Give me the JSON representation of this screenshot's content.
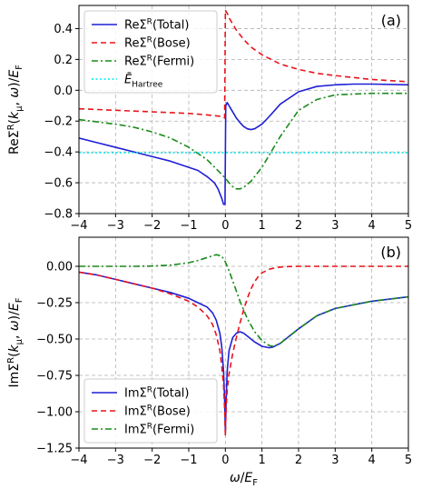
{
  "chart_data": [
    {
      "panel_label": "(a)",
      "type": "line",
      "ylabel": "ReΣR(kμ, ω)/EF",
      "xlim": [
        -4,
        5
      ],
      "ylim": [
        -0.8,
        0.55
      ],
      "x_ticks": [
        -4,
        -3,
        -2,
        -1,
        0,
        1,
        2,
        3,
        4,
        5
      ],
      "x_tick_labels": [
        "−4",
        "−3",
        "−2",
        "−1",
        "0",
        "1",
        "2",
        "3",
        "4",
        "5"
      ],
      "y_ticks": [
        -0.8,
        -0.6,
        -0.4,
        -0.2,
        0.0,
        0.2,
        0.4
      ],
      "y_tick_labels": [
        "−0.8",
        "−0.6",
        "−0.4",
        "−0.2",
        "0.0",
        "0.2",
        "0.4"
      ],
      "grid": true,
      "legend_position": "top-left",
      "series": [
        {
          "name": "ReΣR(Total)",
          "color": "#1f1fd6",
          "style": "solid",
          "x": [
            -4,
            -3.5,
            -3,
            -2.5,
            -2,
            -1.5,
            -1,
            -0.75,
            -0.5,
            -0.3,
            -0.2,
            -0.1,
            -0.05,
            -0.01,
            0.01,
            0.05,
            0.1,
            0.2,
            0.3,
            0.4,
            0.5,
            0.6,
            0.7,
            0.8,
            1.0,
            1.2,
            1.5,
            2.0,
            2.5,
            3.0,
            3.5,
            4.0,
            5.0
          ],
          "y": [
            -0.31,
            -0.34,
            -0.37,
            -0.4,
            -0.43,
            -0.46,
            -0.5,
            -0.52,
            -0.56,
            -0.6,
            -0.64,
            -0.7,
            -0.74,
            -0.74,
            -0.1,
            -0.08,
            -0.1,
            -0.14,
            -0.18,
            -0.21,
            -0.235,
            -0.25,
            -0.255,
            -0.25,
            -0.22,
            -0.17,
            -0.09,
            -0.01,
            0.025,
            0.035,
            0.04,
            0.04,
            0.035
          ]
        },
        {
          "name": "ReΣR(Bose)",
          "color": "#e8141c",
          "style": "dashed",
          "x": [
            -4,
            -3.5,
            -3,
            -2.5,
            -2,
            -1.5,
            -1,
            -0.75,
            -0.5,
            -0.3,
            -0.1,
            -0.02,
            0.0,
            0.02,
            0.05,
            0.1,
            0.2,
            0.3,
            0.5,
            0.7,
            1.0,
            1.5,
            2.0,
            2.5,
            3.0,
            4.0,
            5.0
          ],
          "y": [
            -0.12,
            -0.125,
            -0.13,
            -0.135,
            -0.14,
            -0.145,
            -0.15,
            -0.155,
            -0.16,
            -0.165,
            -0.17,
            -0.18,
            0.52,
            0.51,
            0.5,
            0.47,
            0.43,
            0.39,
            0.33,
            0.28,
            0.23,
            0.17,
            0.135,
            0.11,
            0.095,
            0.07,
            0.055
          ]
        },
        {
          "name": "ReΣR(Fermi)",
          "color": "#1a8a1a",
          "style": "dashdot",
          "x": [
            -4,
            -3.5,
            -3,
            -2.5,
            -2,
            -1.5,
            -1,
            -0.5,
            -0.25,
            0.0,
            0.1,
            0.2,
            0.3,
            0.4,
            0.5,
            0.7,
            1.0,
            1.5,
            2.0,
            2.5,
            3.0,
            4.0,
            5.0
          ],
          "y": [
            -0.19,
            -0.205,
            -0.22,
            -0.24,
            -0.27,
            -0.31,
            -0.37,
            -0.45,
            -0.51,
            -0.57,
            -0.6,
            -0.625,
            -0.64,
            -0.64,
            -0.63,
            -0.59,
            -0.5,
            -0.3,
            -0.13,
            -0.06,
            -0.03,
            -0.02,
            -0.02
          ]
        },
        {
          "name": "ĒHartree",
          "color": "#00e5e5",
          "style": "dotted",
          "x": [
            -4,
            5
          ],
          "y": [
            -0.405,
            -0.405
          ]
        }
      ]
    },
    {
      "panel_label": "(b)",
      "type": "line",
      "xlabel": "ω/EF",
      "ylabel": "ImΣR(kμ, ω)/EF",
      "xlim": [
        -4,
        5
      ],
      "ylim": [
        -1.25,
        0.2
      ],
      "x_ticks": [
        -4,
        -3,
        -2,
        -1,
        0,
        1,
        2,
        3,
        4,
        5
      ],
      "x_tick_labels": [
        "−4",
        "−3",
        "−2",
        "−1",
        "0",
        "1",
        "2",
        "3",
        "4",
        "5"
      ],
      "y_ticks": [
        -1.25,
        -1.0,
        -0.75,
        -0.5,
        -0.25,
        0.0
      ],
      "y_tick_labels": [
        "−1.25",
        "−1.00",
        "−0.75",
        "−0.50",
        "−0.25",
        "0.00"
      ],
      "grid": true,
      "legend_position": "bottom-left",
      "series": [
        {
          "name": "ImΣR(Total)",
          "color": "#1f1fd6",
          "style": "solid",
          "x": [
            -4,
            -3.5,
            -3,
            -2.5,
            -2,
            -1.5,
            -1,
            -0.75,
            -0.5,
            -0.35,
            -0.25,
            -0.15,
            -0.1,
            -0.05,
            -0.02,
            0.0,
            0.02,
            0.05,
            0.1,
            0.2,
            0.3,
            0.4,
            0.5,
            0.6,
            0.8,
            1.0,
            1.2,
            1.3,
            1.5,
            2.0,
            2.5,
            3.0,
            4.0,
            5.0
          ],
          "y": [
            -0.04,
            -0.06,
            -0.09,
            -0.12,
            -0.15,
            -0.18,
            -0.22,
            -0.25,
            -0.28,
            -0.32,
            -0.37,
            -0.46,
            -0.55,
            -0.72,
            -0.92,
            -1.15,
            -0.92,
            -0.72,
            -0.58,
            -0.49,
            -0.46,
            -0.45,
            -0.46,
            -0.48,
            -0.52,
            -0.55,
            -0.56,
            -0.555,
            -0.53,
            -0.43,
            -0.34,
            -0.29,
            -0.24,
            -0.21
          ]
        },
        {
          "name": "ImΣR(Bose)",
          "color": "#e8141c",
          "style": "dashed",
          "x": [
            -4,
            -3.5,
            -3,
            -2.5,
            -2,
            -1.5,
            -1,
            -0.75,
            -0.5,
            -0.35,
            -0.25,
            -0.15,
            -0.1,
            -0.05,
            -0.02,
            0.0,
            0.02,
            0.05,
            0.1,
            0.2,
            0.3,
            0.4,
            0.5,
            0.6,
            0.7,
            0.8,
            0.9,
            1.0,
            1.2,
            1.4,
            1.6,
            1.8,
            2.0,
            2.5,
            3.0,
            4.0,
            5.0
          ],
          "y": [
            -0.04,
            -0.06,
            -0.09,
            -0.12,
            -0.15,
            -0.19,
            -0.24,
            -0.28,
            -0.34,
            -0.4,
            -0.47,
            -0.58,
            -0.68,
            -0.82,
            -0.98,
            -1.16,
            -0.98,
            -0.85,
            -0.74,
            -0.6,
            -0.49,
            -0.39,
            -0.3,
            -0.22,
            -0.155,
            -0.105,
            -0.07,
            -0.045,
            -0.02,
            -0.008,
            -0.003,
            -0.001,
            0.0,
            0.0,
            0.0,
            0.0,
            0.0
          ]
        },
        {
          "name": "ImΣR(Fermi)",
          "color": "#1a8a1a",
          "style": "dashdot",
          "x": [
            -4,
            -3.5,
            -3,
            -2.5,
            -2,
            -1.5,
            -1,
            -0.75,
            -0.5,
            -0.25,
            -0.1,
            0.0,
            0.1,
            0.2,
            0.3,
            0.4,
            0.5,
            0.6,
            0.8,
            1.0,
            1.2,
            1.3,
            1.5,
            2.0,
            2.5,
            3.0,
            4.0,
            5.0
          ],
          "y": [
            0.0,
            0.0,
            0.0,
            0.0,
            0.002,
            0.008,
            0.025,
            0.04,
            0.06,
            0.08,
            0.07,
            0.03,
            -0.03,
            -0.1,
            -0.17,
            -0.24,
            -0.3,
            -0.36,
            -0.45,
            -0.51,
            -0.545,
            -0.55,
            -0.53,
            -0.43,
            -0.34,
            -0.29,
            -0.24,
            -0.21
          ]
        }
      ]
    }
  ]
}
